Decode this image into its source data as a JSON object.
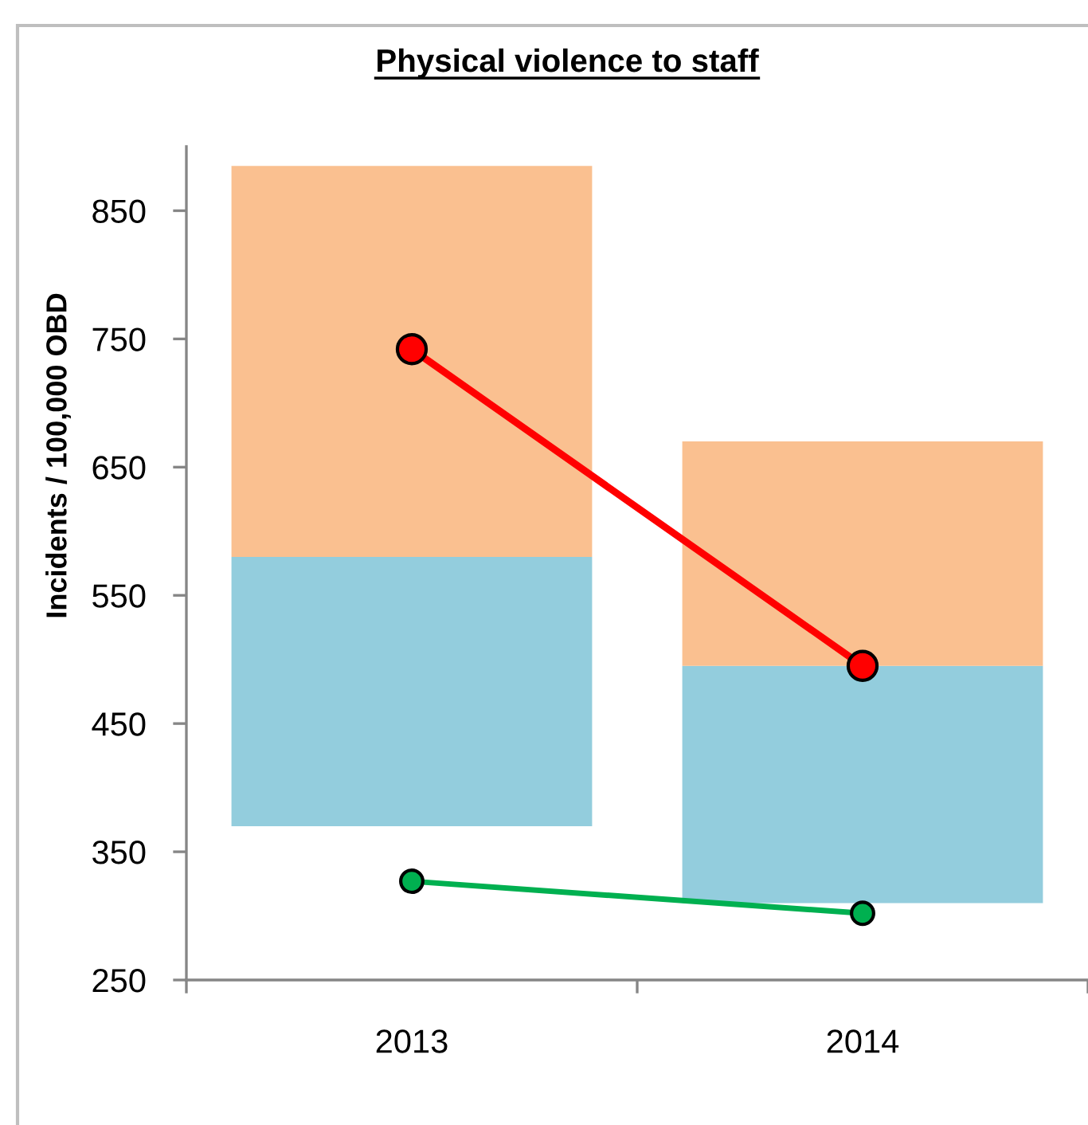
{
  "chart_data": {
    "type": "bar",
    "title": "Physical violence to staff",
    "ylabel": "Incidents / 100,000 OBD",
    "categories": [
      "2013",
      "2014"
    ],
    "series": [
      {
        "color": "#93cddd",
        "base": [
          370,
          310
        ],
        "values": [
          210,
          185
        ]
      },
      {
        "color": "#fac090",
        "base": [
          580,
          495
        ],
        "values": [
          305,
          175
        ]
      },
      {
        "type": "line",
        "color": "#ff0000",
        "values": [
          742,
          495
        ]
      },
      {
        "type": "line",
        "color": "#00b050",
        "values": [
          327,
          302
        ]
      }
    ],
    "marker": "circle",
    "line_style": "solid",
    "ylim": [
      250,
      900
    ],
    "yticks": [
      250,
      350,
      450,
      550,
      650,
      750,
      850
    ]
  }
}
